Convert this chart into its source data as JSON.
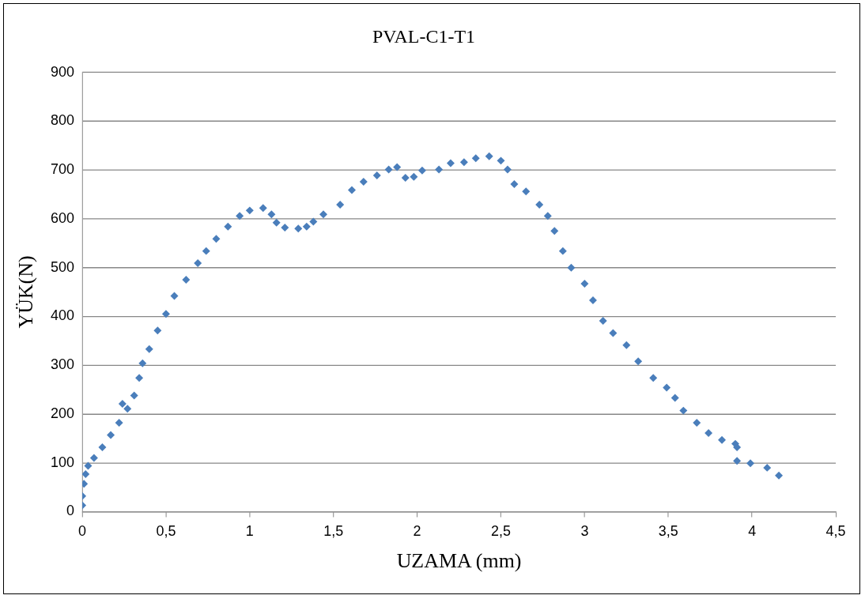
{
  "chart_data": {
    "type": "scatter",
    "title": "PVAL-C1-T1",
    "xlabel": "UZAMA (mm)",
    "ylabel": "YÜK(N)",
    "x": [
      0,
      0,
      0.01,
      0.02,
      0.035,
      0.07,
      0.12,
      0.17,
      0.22,
      0.24,
      0.27,
      0.31,
      0.34,
      0.36,
      0.4,
      0.45,
      0.5,
      0.55,
      0.62,
      0.69,
      0.74,
      0.8,
      0.87,
      0.94,
      1.0,
      1.08,
      1.13,
      1.16,
      1.21,
      1.29,
      1.34,
      1.38,
      1.44,
      1.54,
      1.61,
      1.68,
      1.76,
      1.83,
      1.88,
      1.93,
      1.98,
      2.03,
      2.13,
      2.2,
      2.28,
      2.35,
      2.43,
      2.5,
      2.54,
      2.58,
      2.65,
      2.73,
      2.78,
      2.82,
      2.87,
      2.92,
      3.0,
      3.05,
      3.11,
      3.17,
      3.25,
      3.32,
      3.41,
      3.49,
      3.54,
      3.59,
      3.67,
      3.74,
      3.82,
      3.9,
      3.91,
      3.91,
      3.99,
      4.09,
      4.16
    ],
    "series": [
      {
        "color": "#4a7ebb",
        "values": [
          13,
          32,
          57,
          77,
          94,
          110,
          132,
          157,
          182,
          221,
          211,
          238,
          274,
          304,
          333,
          371,
          405,
          442,
          475,
          509,
          534,
          559,
          584,
          606,
          617,
          622,
          609,
          592,
          582,
          580,
          584,
          594,
          609,
          629,
          659,
          676,
          689,
          701,
          706,
          684,
          686,
          699,
          701,
          714,
          716,
          724,
          728,
          719,
          701,
          671,
          656,
          629,
          606,
          575,
          534,
          500,
          467,
          433,
          391,
          366,
          341,
          308,
          274,
          254,
          233,
          207,
          182,
          161,
          147,
          139,
          132,
          104,
          99,
          90,
          74
        ]
      }
    ],
    "xlim": [
      0,
      4.5
    ],
    "xticks": [
      0,
      {
        "value": 0.5,
        "label": "0,5"
      },
      1,
      {
        "value": 1.5,
        "label": "1,5"
      },
      2,
      {
        "value": 2.5,
        "label": "2,5"
      },
      3,
      {
        "value": 3.5,
        "label": "3,5"
      },
      4,
      {
        "value": 4.5,
        "label": "4,5"
      }
    ],
    "ylim": [
      0,
      900
    ],
    "yticks": [
      0,
      100,
      200,
      300,
      400,
      500,
      600,
      700,
      800,
      900
    ],
    "grid": "y",
    "legend": false,
    "marker": "diamond"
  }
}
